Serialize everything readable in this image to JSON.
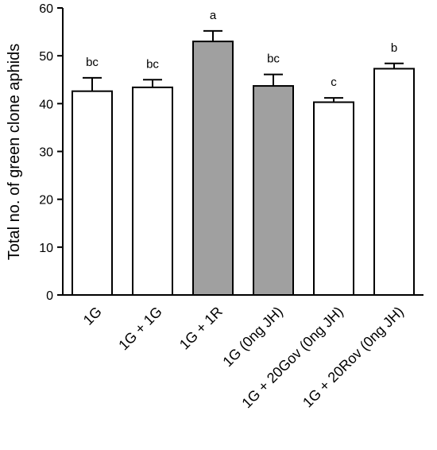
{
  "chart_data": {
    "type": "bar",
    "title": "",
    "xlabel": "",
    "ylabel": "Total no. of green clone aphids",
    "ylim": [
      0,
      60
    ],
    "yticks": [
      "0",
      "10",
      "20",
      "30",
      "40",
      "50",
      "60"
    ],
    "grid": false,
    "categories": [
      "1G",
      "1G + 1G",
      "1G + 1R",
      "1G (0ng JH)",
      "1G + 20Gov (0ng JH)",
      "1G + 20Rov (0ng JH)"
    ],
    "values": [
      42.6,
      43.4,
      53.0,
      43.7,
      40.3,
      47.3
    ],
    "error": [
      2.8,
      1.6,
      2.2,
      2.4,
      0.9,
      1.1
    ],
    "significance": [
      "bc",
      "bc",
      "a",
      "bc",
      "c",
      "b"
    ],
    "bar_fill": [
      "#ffffff",
      "#ffffff",
      "#a0a0a0",
      "#a0a0a0",
      "#ffffff",
      "#ffffff"
    ],
    "edge_color": "#000000"
  }
}
